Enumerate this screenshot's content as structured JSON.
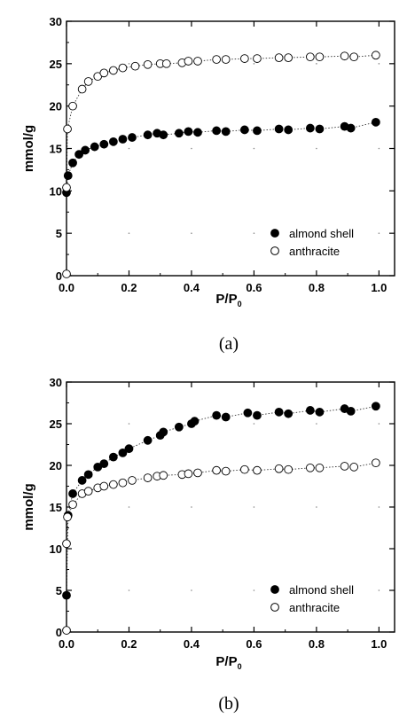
{
  "chart_data": [
    {
      "type": "scatter",
      "caption": "(a)",
      "xlabel_main": "P/P",
      "xlabel_sub": "0",
      "ylabel": "mmol/g",
      "xlim": [
        0,
        1.05
      ],
      "ylim": [
        0,
        30
      ],
      "xticks": [
        "0.0",
        "0.2",
        "0.4",
        "0.6",
        "0.8",
        "1.0"
      ],
      "yticks": [
        "0",
        "5",
        "10",
        "15",
        "20",
        "25",
        "30"
      ],
      "legend_position": "bottom-right",
      "series": [
        {
          "name": "almond shell",
          "marker": "filled-circle",
          "points": [
            [
              0.0,
              9.8
            ],
            [
              0.005,
              11.8
            ],
            [
              0.02,
              13.3
            ],
            [
              0.04,
              14.3
            ],
            [
              0.06,
              14.8
            ],
            [
              0.09,
              15.2
            ],
            [
              0.12,
              15.5
            ],
            [
              0.15,
              15.8
            ],
            [
              0.18,
              16.1
            ],
            [
              0.21,
              16.3
            ],
            [
              0.26,
              16.6
            ],
            [
              0.29,
              16.8
            ],
            [
              0.31,
              16.6
            ],
            [
              0.36,
              16.8
            ],
            [
              0.39,
              17.0
            ],
            [
              0.42,
              16.9
            ],
            [
              0.48,
              17.1
            ],
            [
              0.51,
              17.0
            ],
            [
              0.57,
              17.2
            ],
            [
              0.61,
              17.1
            ],
            [
              0.68,
              17.3
            ],
            [
              0.71,
              17.2
            ],
            [
              0.78,
              17.4
            ],
            [
              0.81,
              17.3
            ],
            [
              0.89,
              17.6
            ],
            [
              0.91,
              17.4
            ],
            [
              0.99,
              18.1
            ]
          ]
        },
        {
          "name": "anthracite",
          "marker": "open-circle",
          "points": [
            [
              0.0,
              0.2
            ],
            [
              0.0,
              10.4
            ],
            [
              0.003,
              17.3
            ],
            [
              0.02,
              20.0
            ],
            [
              0.05,
              22.0
            ],
            [
              0.07,
              22.9
            ],
            [
              0.1,
              23.5
            ],
            [
              0.12,
              23.9
            ],
            [
              0.15,
              24.2
            ],
            [
              0.18,
              24.5
            ],
            [
              0.22,
              24.7
            ],
            [
              0.26,
              24.9
            ],
            [
              0.3,
              25.0
            ],
            [
              0.32,
              25.0
            ],
            [
              0.37,
              25.1
            ],
            [
              0.39,
              25.3
            ],
            [
              0.42,
              25.3
            ],
            [
              0.48,
              25.5
            ],
            [
              0.51,
              25.5
            ],
            [
              0.57,
              25.6
            ],
            [
              0.61,
              25.6
            ],
            [
              0.68,
              25.7
            ],
            [
              0.71,
              25.7
            ],
            [
              0.78,
              25.8
            ],
            [
              0.81,
              25.8
            ],
            [
              0.89,
              25.9
            ],
            [
              0.92,
              25.8
            ],
            [
              0.99,
              26.0
            ]
          ]
        }
      ]
    },
    {
      "type": "scatter",
      "caption": "(b)",
      "xlabel_main": "P/P",
      "xlabel_sub": "0",
      "ylabel": "mmol/g",
      "xlim": [
        0,
        1.05
      ],
      "ylim": [
        0,
        30
      ],
      "xticks": [
        "0.0",
        "0.2",
        "0.4",
        "0.6",
        "0.8",
        "1.0"
      ],
      "yticks": [
        "0",
        "5",
        "10",
        "15",
        "20",
        "25",
        "30"
      ],
      "legend_position": "bottom-right",
      "series": [
        {
          "name": "almond shell",
          "marker": "filled-circle",
          "points": [
            [
              0.0,
              4.4
            ],
            [
              0.005,
              14.0
            ],
            [
              0.02,
              16.6
            ],
            [
              0.05,
              18.2
            ],
            [
              0.07,
              18.9
            ],
            [
              0.1,
              19.8
            ],
            [
              0.12,
              20.2
            ],
            [
              0.15,
              21.0
            ],
            [
              0.18,
              21.5
            ],
            [
              0.2,
              22.0
            ],
            [
              0.26,
              23.0
            ],
            [
              0.3,
              23.6
            ],
            [
              0.31,
              24.0
            ],
            [
              0.36,
              24.6
            ],
            [
              0.4,
              25.0
            ],
            [
              0.41,
              25.3
            ],
            [
              0.48,
              26.0
            ],
            [
              0.51,
              25.8
            ],
            [
              0.58,
              26.3
            ],
            [
              0.61,
              26.0
            ],
            [
              0.68,
              26.4
            ],
            [
              0.71,
              26.2
            ],
            [
              0.78,
              26.6
            ],
            [
              0.81,
              26.4
            ],
            [
              0.89,
              26.8
            ],
            [
              0.91,
              26.5
            ],
            [
              0.99,
              27.1
            ]
          ]
        },
        {
          "name": "anthracite",
          "marker": "open-circle",
          "points": [
            [
              0.0,
              0.2
            ],
            [
              0.0,
              10.6
            ],
            [
              0.003,
              13.8
            ],
            [
              0.02,
              15.3
            ],
            [
              0.05,
              16.6
            ],
            [
              0.07,
              16.9
            ],
            [
              0.1,
              17.3
            ],
            [
              0.12,
              17.5
            ],
            [
              0.15,
              17.7
            ],
            [
              0.18,
              17.9
            ],
            [
              0.21,
              18.2
            ],
            [
              0.26,
              18.5
            ],
            [
              0.29,
              18.7
            ],
            [
              0.31,
              18.8
            ],
            [
              0.37,
              18.9
            ],
            [
              0.39,
              19.0
            ],
            [
              0.42,
              19.1
            ],
            [
              0.48,
              19.4
            ],
            [
              0.51,
              19.3
            ],
            [
              0.57,
              19.5
            ],
            [
              0.61,
              19.4
            ],
            [
              0.68,
              19.6
            ],
            [
              0.71,
              19.5
            ],
            [
              0.78,
              19.7
            ],
            [
              0.81,
              19.7
            ],
            [
              0.89,
              19.9
            ],
            [
              0.92,
              19.8
            ],
            [
              0.99,
              20.3
            ]
          ]
        }
      ]
    }
  ]
}
